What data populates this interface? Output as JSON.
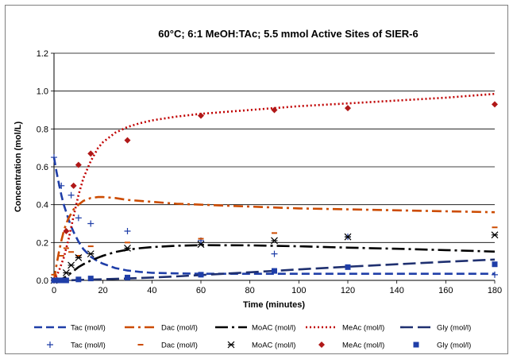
{
  "chart_data": {
    "type": "scatter",
    "title": "60°C; 6:1 MeOH:TAc;  5.5 mmol Active Sites of SIER-6",
    "xlabel": "Time (minutes)",
    "ylabel": "Concentration (mol/L)",
    "xlim": [
      0,
      180
    ],
    "ylim": [
      0,
      1.2
    ],
    "xticks": [
      0,
      20,
      40,
      60,
      80,
      100,
      120,
      140,
      160,
      180
    ],
    "xtick_labels": [
      "0",
      "20",
      "40",
      "60",
      "80",
      "100",
      "120",
      "140",
      "160",
      "180"
    ],
    "yticks": [
      0,
      0.2,
      0.4,
      0.6,
      0.8,
      1.0,
      1.2
    ],
    "ytick_labels": [
      "0.0",
      "0.2",
      "0.4",
      "0.6",
      "0.8",
      "1.0",
      "1.2"
    ],
    "grid": "horizontal major gridlines",
    "legend_position": "bottom",
    "model_lines": [
      {
        "name": "Tac (mol/l)",
        "color": "#1f3ea8",
        "dash": "dash",
        "x": [
          0,
          1,
          2,
          3,
          4,
          5,
          6,
          7,
          8,
          10,
          12,
          15,
          18,
          20,
          25,
          30,
          35,
          40,
          50,
          60,
          80,
          100,
          120,
          140,
          160,
          180
        ],
        "y": [
          0.65,
          0.575,
          0.51,
          0.45,
          0.4,
          0.36,
          0.32,
          0.285,
          0.255,
          0.205,
          0.165,
          0.125,
          0.1,
          0.088,
          0.065,
          0.052,
          0.045,
          0.04,
          0.037,
          0.035,
          0.035,
          0.035,
          0.035,
          0.035,
          0.035,
          0.035
        ]
      },
      {
        "name": "Dac (mol/l)",
        "color": "#cc4b00",
        "dash": "dashdot",
        "x": [
          0,
          1,
          2,
          3,
          4,
          5,
          6,
          8,
          10,
          12,
          15,
          18,
          20,
          25,
          30,
          40,
          50,
          60,
          80,
          100,
          120,
          140,
          160,
          180
        ],
        "y": [
          0,
          0.08,
          0.15,
          0.21,
          0.26,
          0.3,
          0.33,
          0.375,
          0.4,
          0.42,
          0.435,
          0.44,
          0.44,
          0.435,
          0.425,
          0.415,
          0.405,
          0.4,
          0.39,
          0.38,
          0.375,
          0.37,
          0.365,
          0.36
        ]
      },
      {
        "name": "MoAC (mol/l)",
        "color": "#000000",
        "dash": "longdashdot",
        "x": [
          0,
          2,
          4,
          6,
          8,
          10,
          12,
          15,
          20,
          25,
          30,
          35,
          40,
          50,
          60,
          80,
          100,
          120,
          140,
          160,
          180
        ],
        "y": [
          0,
          0.003,
          0.012,
          0.03,
          0.05,
          0.07,
          0.085,
          0.105,
          0.13,
          0.15,
          0.162,
          0.17,
          0.176,
          0.183,
          0.186,
          0.185,
          0.18,
          0.173,
          0.167,
          0.16,
          0.152
        ]
      },
      {
        "name": "MeAc (mol/l)",
        "color": "#c00000",
        "dash": "dot",
        "x": [
          0,
          2,
          4,
          6,
          8,
          10,
          12,
          15,
          18,
          20,
          25,
          30,
          35,
          40,
          50,
          60,
          80,
          100,
          120,
          140,
          160,
          180
        ],
        "y": [
          0,
          0.05,
          0.12,
          0.22,
          0.34,
          0.45,
          0.54,
          0.63,
          0.7,
          0.73,
          0.78,
          0.81,
          0.83,
          0.845,
          0.865,
          0.88,
          0.9,
          0.92,
          0.935,
          0.95,
          0.965,
          0.985
        ]
      },
      {
        "name": "Gly (mol/l)",
        "color": "#1f3070",
        "dash": "longdash",
        "x": [
          0,
          5,
          10,
          15,
          20,
          30,
          40,
          50,
          60,
          80,
          100,
          120,
          140,
          160,
          180
        ],
        "y": [
          0,
          0.0,
          0.002,
          0.004,
          0.006,
          0.01,
          0.015,
          0.021,
          0.028,
          0.043,
          0.058,
          0.072,
          0.085,
          0.098,
          0.11
        ]
      }
    ],
    "experimental_points": [
      {
        "name": "Tac (mol/l)",
        "color": "#1f3ea8",
        "marker": "plus",
        "x": [
          0,
          3,
          7,
          10,
          15,
          30,
          60,
          90,
          120,
          180
        ],
        "y": [
          0.65,
          0.5,
          0.45,
          0.33,
          0.3,
          0.26,
          0.21,
          0.14,
          0.23,
          0.03
        ]
      },
      {
        "name": "Dac (mol/l)",
        "color": "#cc4b00",
        "marker": "dash",
        "x": [
          0,
          3,
          5,
          7,
          10,
          15,
          30,
          60,
          90,
          180
        ],
        "y": [
          0.03,
          0.13,
          0.17,
          0.15,
          0.13,
          0.18,
          0.2,
          0.22,
          0.25,
          0.28
        ]
      },
      {
        "name": "MoAC (mol/l)",
        "color": "#000000",
        "marker": "star",
        "x": [
          0,
          5,
          7,
          10,
          15,
          30,
          60,
          90,
          120,
          180
        ],
        "y": [
          0,
          0.04,
          0.08,
          0.12,
          0.14,
          0.17,
          0.19,
          0.21,
          0.23,
          0.24
        ]
      },
      {
        "name": "MeAc (mol/l)",
        "color": "#b01818",
        "marker": "diamond",
        "x": [
          0,
          5,
          8,
          10,
          15,
          30,
          60,
          90,
          120,
          180
        ],
        "y": [
          0,
          0.26,
          0.5,
          0.61,
          0.67,
          0.74,
          0.87,
          0.9,
          0.91,
          0.93
        ]
      },
      {
        "name": "Gly (mol/l)",
        "color": "#1f3ea8",
        "marker": "square",
        "x": [
          0,
          1,
          2,
          3,
          5,
          10,
          15,
          30,
          60,
          90,
          120,
          180
        ],
        "y": [
          0,
          0,
          0,
          0,
          0,
          0.005,
          0.01,
          0.015,
          0.03,
          0.05,
          0.07,
          0.085
        ]
      }
    ]
  }
}
